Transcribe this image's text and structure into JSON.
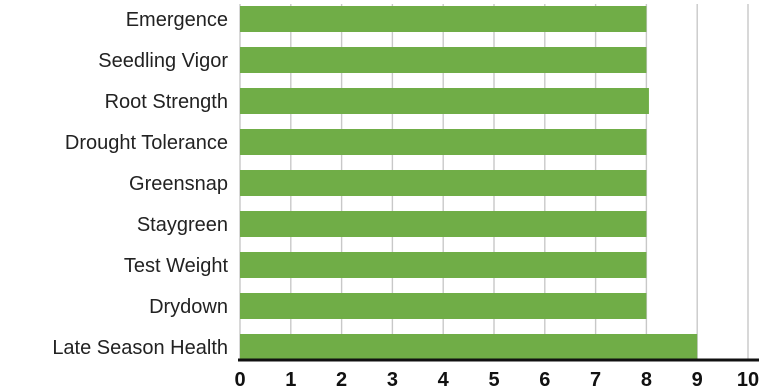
{
  "chart_data": {
    "type": "bar",
    "orientation": "horizontal",
    "categories": [
      "Emergence",
      "Seedling Vigor",
      "Root Strength",
      "Drought Tolerance",
      "Greensnap",
      "Staygreen",
      "Test Weight",
      "Drydown",
      "Late Season Health"
    ],
    "values": [
      8.0,
      8.0,
      8.05,
      8.0,
      8.0,
      8.0,
      8.0,
      8.0,
      9.0
    ],
    "bar_color": "#70ad47",
    "xlim": [
      0,
      10
    ],
    "xticks": [
      "0",
      "1",
      "2",
      "3",
      "4",
      "5",
      "6",
      "7",
      "8",
      "9",
      "10"
    ],
    "grid": true,
    "title": "",
    "xlabel": "",
    "ylabel": ""
  }
}
